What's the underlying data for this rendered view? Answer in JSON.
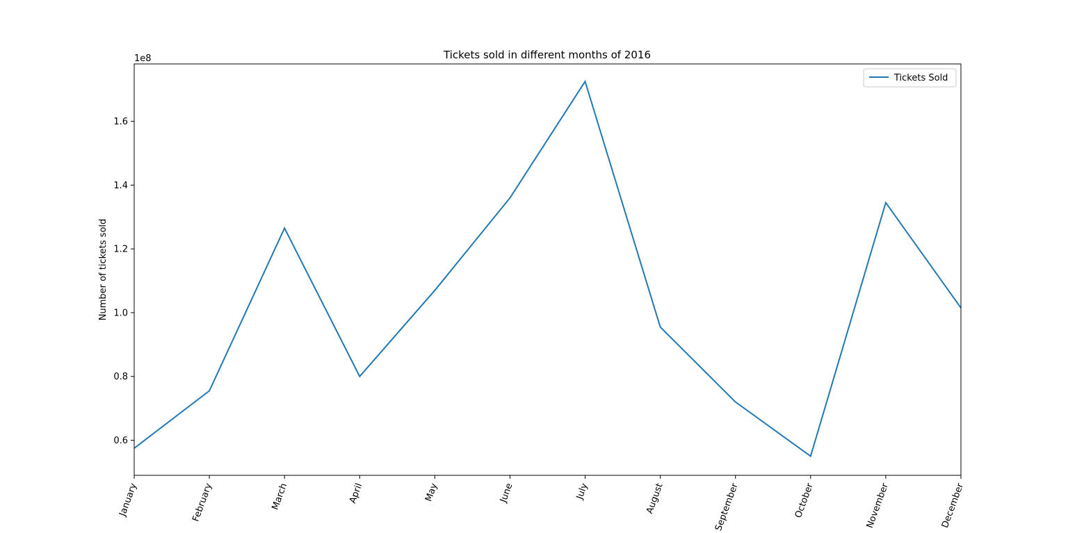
{
  "chart_data": {
    "type": "line",
    "title": "Tickets sold in different months of 2016",
    "xlabel": "",
    "ylabel": "Number of tickets sold",
    "offset_label": "1e8",
    "categories": [
      "January",
      "February",
      "March",
      "April",
      "May",
      "June",
      "July",
      "August",
      "September",
      "October",
      "November",
      "December"
    ],
    "series": [
      {
        "name": "Tickets Sold",
        "color": "#1f77b4",
        "values": [
          57500000,
          75500000,
          126500000,
          80000000,
          107000000,
          136000000,
          172500000,
          95500000,
          72000000,
          55000000,
          134500000,
          101500000
        ]
      }
    ],
    "ylim": [
      0.49,
      1.78
    ],
    "yticks": [
      0.6,
      0.8,
      1.0,
      1.2,
      1.4,
      1.6
    ],
    "ytick_labels": [
      "0.6",
      "0.8",
      "1.0",
      "1.2",
      "1.4",
      "1.6"
    ],
    "y_scale_factor": 100000000,
    "grid": false,
    "legend_position": "top-right",
    "xtick_rotation": "-70deg"
  }
}
